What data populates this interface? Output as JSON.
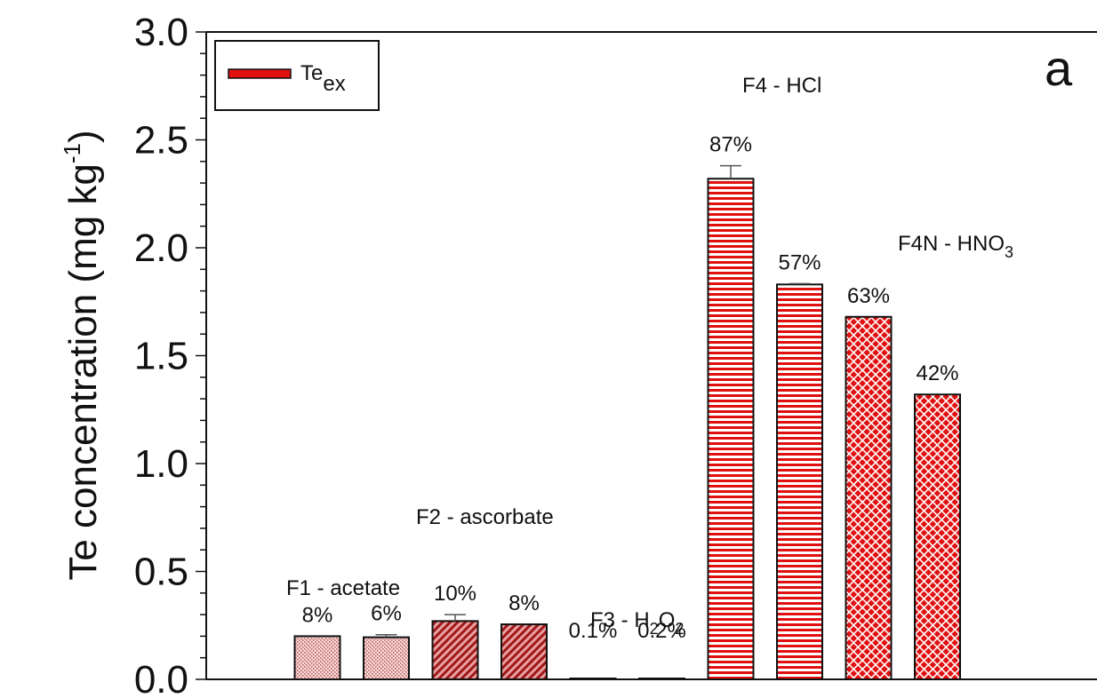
{
  "chart_data": {
    "type": "bar",
    "ylabel": "Te concentration (mg kg",
    "ylabel_sup": "-1",
    "ylabel_end": ")",
    "ylim": [
      0,
      3.0
    ],
    "yticks": [
      "0.0",
      "0.5",
      "1.0",
      "1.5",
      "2.0",
      "2.5",
      "3.0"
    ],
    "legend": {
      "placement": "top-left",
      "label": "Te",
      "label_sub": "ex",
      "color": "#e01010"
    },
    "panel_letter": "a",
    "bars": [
      {
        "value": 0.2,
        "label": "8%",
        "pattern": "dots",
        "err": 0
      },
      {
        "value": 0.195,
        "label": "6%",
        "pattern": "dots",
        "err": 0.012
      },
      {
        "value": 0.27,
        "label": "10%",
        "pattern": "diag",
        "err": 0.03
      },
      {
        "value": 0.255,
        "label": "8%",
        "pattern": "diag",
        "err": 0
      },
      {
        "value": 0.002,
        "label": "0.1%",
        "pattern": "none",
        "err": 0
      },
      {
        "value": 0.004,
        "label": "0.2%",
        "pattern": "none",
        "err": 0
      },
      {
        "value": 2.32,
        "label": "87%",
        "pattern": "horiz",
        "err": 0.06
      },
      {
        "value": 1.83,
        "label": "57%",
        "pattern": "horiz",
        "err": 0.004
      },
      {
        "value": 1.68,
        "label": "63%",
        "pattern": "cross",
        "err": 0
      },
      {
        "value": 1.32,
        "label": "42%",
        "pattern": "cross",
        "err": 0
      }
    ],
    "groups": [
      {
        "name": "F1 - acetate"
      },
      {
        "name": "F2 - ascorbate"
      },
      {
        "name": "F3 - H",
        "sub1": "2",
        "mid": "O",
        "sub2": "2"
      },
      {
        "name": "F4 - HCl"
      },
      {
        "name": "F4N - HNO",
        "sub1": "3"
      }
    ],
    "colors": {
      "bar_red": "#e01010",
      "bar_light": "#f2c8c8",
      "outline": "#111111"
    }
  }
}
